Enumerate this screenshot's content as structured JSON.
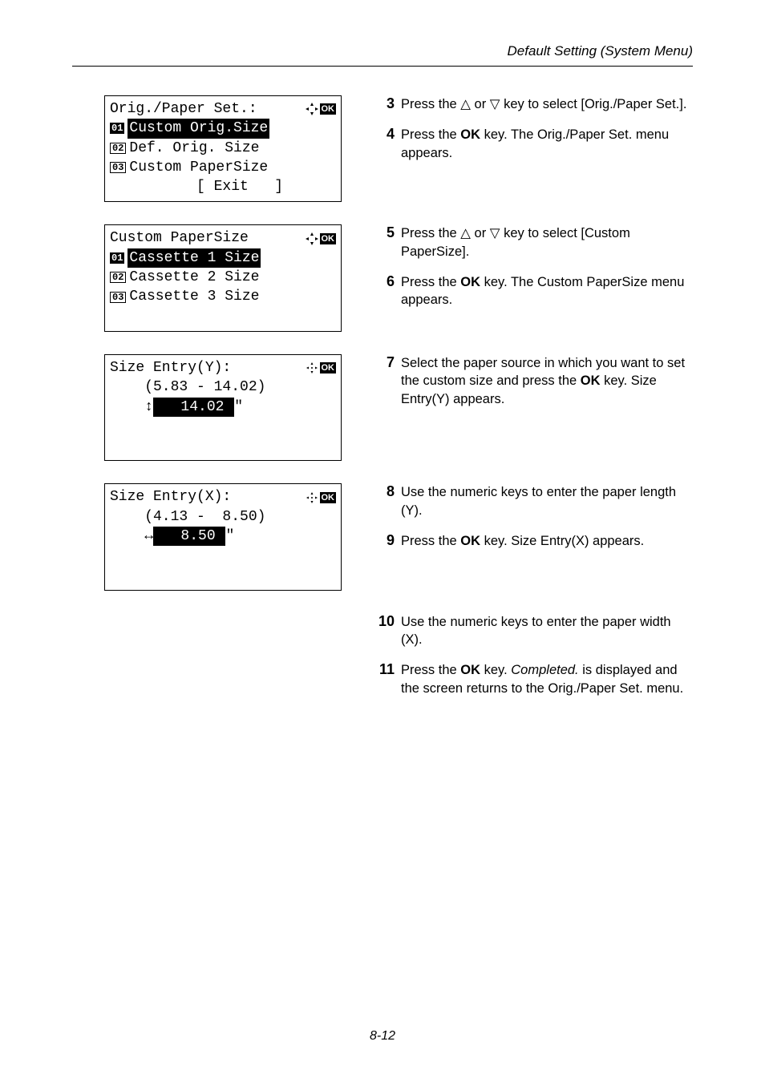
{
  "header": {
    "title": "Default Setting (System Menu)"
  },
  "footer": {
    "pagenum": "8-12"
  },
  "icons": {
    "tri_up": "△",
    "tri_down": "▽"
  },
  "blocks": [
    {
      "lcd": {
        "title": "Orig./Paper Set.:",
        "title_icons": "nav_ok",
        "rows": [
          {
            "num": "01",
            "text": "Custom Orig.Size",
            "inverted": true
          },
          {
            "num": "02",
            "text": "Def. Orig. Size",
            "inverted": false
          },
          {
            "num": "03",
            "text": "Custom PaperSize",
            "inverted": false
          }
        ],
        "footer": "          [ Exit   ]"
      },
      "steps": [
        {
          "n": "3",
          "html": "Press the △ or ▽ key to select [Orig./Paper Set.]."
        },
        {
          "n": "4",
          "html": "Press the <span class=\"b\">OK</span> key. The Orig./Paper Set. menu appears."
        }
      ]
    },
    {
      "lcd": {
        "title": "Custom PaperSize",
        "title_icons": "nav_ok",
        "rows": [
          {
            "num": "01",
            "text": "Cassette 1 Size",
            "inverted": true
          },
          {
            "num": "02",
            "text": "Cassette 2 Size",
            "inverted": false
          },
          {
            "num": "03",
            "text": "Cassette 3 Size",
            "inverted": false
          }
        ],
        "footer": " "
      },
      "steps": [
        {
          "n": "5",
          "html": "Press the △ or ▽ key to select [Custom PaperSize]."
        },
        {
          "n": "6",
          "html": "Press the <span class=\"b\">OK</span> key. The Custom PaperSize menu appears."
        }
      ]
    },
    {
      "lcd": {
        "title": "Size Entry(Y):",
        "title_icons": "cross_ok",
        "raw_rows": [
          "    (5.83 - 14.02)",
          {
            "prefix": "    ",
            "arrow": "↕",
            "box_before": "   ",
            "value": "14.02 ",
            "quote": "\""
          },
          " ",
          " "
        ]
      },
      "steps": [
        {
          "n": "7",
          "html": "Select the paper source in which you want to set the custom size and press the <span class=\"b\">OK</span> key. Size Entry(Y) appears."
        }
      ]
    },
    {
      "lcd": {
        "title": "Size Entry(X):",
        "title_icons": "cross_ok",
        "raw_rows": [
          "    (4.13 -  8.50)",
          {
            "prefix": "    ",
            "arrow": "↔",
            "box_before": "   ",
            "value": "8.50 ",
            "quote": "\""
          },
          " ",
          " "
        ]
      },
      "steps": [
        {
          "n": "8",
          "html": "Use the numeric keys to enter the paper length (Y)."
        },
        {
          "n": "9",
          "html": "Press the <span class=\"b\">OK</span> key. Size Entry(X) appears."
        }
      ]
    },
    {
      "lcd": null,
      "steps": [
        {
          "n": "10",
          "html": "Use the numeric keys to enter the paper width (X)."
        },
        {
          "n": "11",
          "html": "Press the <span class=\"b\">OK</span> key. <span class=\"ital\">Completed.</span> is displayed and the screen returns to the Orig./Paper Set. menu."
        }
      ]
    }
  ]
}
